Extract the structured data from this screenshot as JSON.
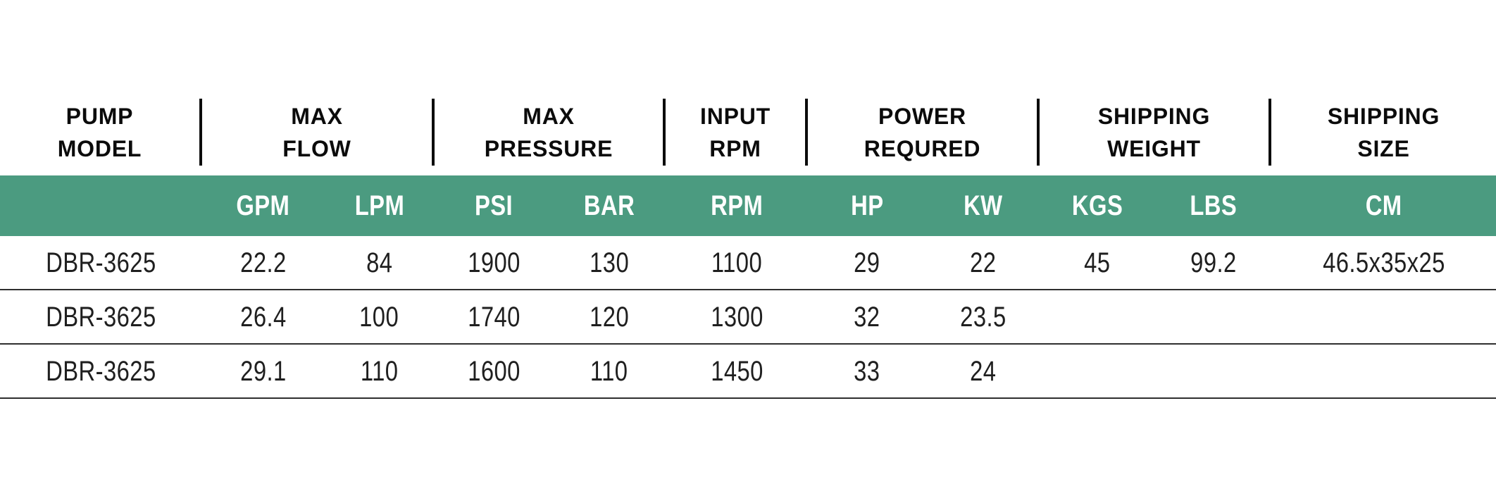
{
  "theme": {
    "accent_green": "#4B9B80",
    "row_line_color": "#2F2F2F",
    "header_text_color": "#0B0B0B",
    "data_text_color": "#1F1F1F",
    "unit_text_color": "#FFFFFF"
  },
  "table": {
    "column_groups": [
      {
        "line1": "PUMP",
        "line2": "MODEL"
      },
      {
        "line1": "MAX",
        "line2": "FLOW"
      },
      {
        "line1": "MAX",
        "line2": "PRESSURE"
      },
      {
        "line1": "INPUT",
        "line2": "RPM"
      },
      {
        "line1": "POWER",
        "line2": "REQURED"
      },
      {
        "line1": "SHIPPING",
        "line2": "WEIGHT"
      },
      {
        "line1": "SHIPPING",
        "line2": "SIZE"
      }
    ],
    "unit_row": [
      "",
      "GPM",
      "LPM",
      "PSI",
      "BAR",
      "RPM",
      "HP",
      "KW",
      "KGS",
      "LBS",
      "CM"
    ],
    "rows": [
      [
        "DBR-3625",
        "22.2",
        "84",
        "1900",
        "130",
        "1100",
        "29",
        "22",
        "45",
        "99.2",
        "46.5x35x25"
      ],
      [
        "DBR-3625",
        "26.4",
        "100",
        "1740",
        "120",
        "1300",
        "32",
        "23.5",
        "",
        "",
        ""
      ],
      [
        "DBR-3625",
        "29.1",
        "110",
        "1600",
        "110",
        "1450",
        "33",
        "24",
        "",
        "",
        ""
      ]
    ]
  },
  "chart_data": {
    "type": "table",
    "column_groups": [
      "PUMP MODEL",
      "MAX FLOW",
      "MAX PRESSURE",
      "INPUT RPM",
      "POWER REQURED",
      "SHIPPING WEIGHT",
      "SHIPPING SIZE"
    ],
    "columns": [
      "PUMP MODEL",
      "GPM",
      "LPM",
      "PSI",
      "BAR",
      "RPM",
      "HP",
      "KW",
      "KGS",
      "LBS",
      "CM"
    ],
    "rows": [
      [
        "DBR-3625",
        22.2,
        84,
        1900,
        130,
        1100,
        29,
        22,
        45,
        99.2,
        "46.5x35x25"
      ],
      [
        "DBR-3625",
        26.4,
        100,
        1740,
        120,
        1300,
        32,
        23.5,
        null,
        null,
        null
      ],
      [
        "DBR-3625",
        29.1,
        110,
        1600,
        110,
        1450,
        33,
        24,
        null,
        null,
        null
      ]
    ]
  }
}
